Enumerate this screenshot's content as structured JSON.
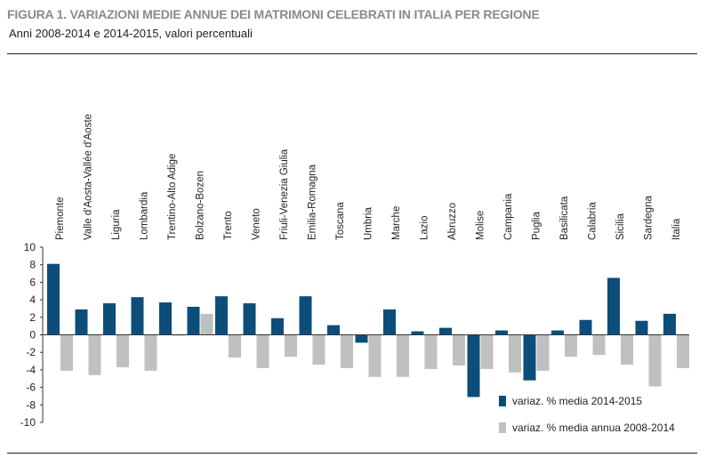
{
  "title": "FIGURA 1. VARIAZIONI MEDIE ANNUE DEI MATRIMONI CELEBRATI IN ITALIA PER REGIONE",
  "subtitle": "Anni 2008-2014 e 2014-2015, valori percentuali",
  "chart_data": {
    "type": "bar",
    "categories": [
      "Piemonte",
      "Valle d'Aosta-Vallée d'Aoste",
      "Liguria",
      "Lombardia",
      "Trentino-Alto Adige",
      "Bolzano-Bozen",
      "Trento",
      "Veneto",
      "Friuli-Venezia Giulia",
      "Emilia-Romagna",
      "Toscana",
      "Umbria",
      "Marche",
      "Lazio",
      "Abruzzo",
      "Molise",
      "Campania",
      "Puglia",
      "Basilicata",
      "Calabria",
      "Sicilia",
      "Sardegna",
      "Italia"
    ],
    "series": [
      {
        "name": "variaz. % media 2014-2015",
        "color": "#0d4d7a",
        "values": [
          8.1,
          2.9,
          3.6,
          4.3,
          3.7,
          3.2,
          4.4,
          3.6,
          1.9,
          4.4,
          1.1,
          -0.9,
          2.9,
          0.4,
          0.8,
          -7.1,
          0.5,
          -5.2,
          0.5,
          1.7,
          6.5,
          1.6,
          2.4
        ]
      },
      {
        "name": "variaz. % media annua 2008-2014",
        "color": "#c0c0c0",
        "values": [
          -4.1,
          -4.6,
          -3.7,
          -4.1,
          -0.1,
          2.4,
          -2.6,
          -3.8,
          -2.5,
          -3.4,
          -3.8,
          -4.8,
          -4.8,
          -3.9,
          -3.5,
          -3.9,
          -4.3,
          -4.1,
          -2.5,
          -2.3,
          -3.4,
          -5.9,
          -3.8
        ]
      }
    ],
    "yticks": [
      "10",
      "8",
      "6",
      "4",
      "2",
      "0",
      "-2",
      "-4",
      "-6",
      "-8",
      "-10"
    ],
    "ylim": [
      -10,
      10
    ],
    "grid": false,
    "legend_position": "bottom-right"
  }
}
